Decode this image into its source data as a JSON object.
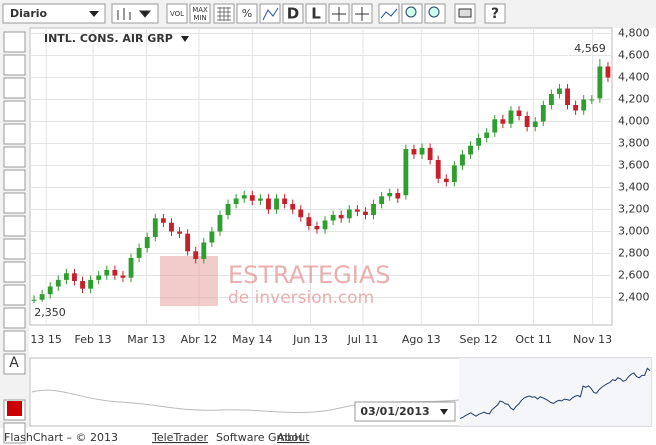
{
  "toolbar": {
    "period": "Diario",
    "vol": "VOL",
    "max": "MAX",
    "min": "MIN",
    "percent": "%",
    "d": "D",
    "l": "L",
    "help": "?"
  },
  "tools": {
    "text": "A"
  },
  "chart_data": {
    "type": "candlestick",
    "title": "INTL. CONS. AIR GRP",
    "open": [
      2370,
      2380,
      2430,
      2500,
      2560,
      2620,
      2550,
      2480,
      2560,
      2600,
      2650,
      2600,
      2580,
      2760,
      2850,
      2950,
      3120,
      3080,
      3000,
      2980,
      2820,
      2750,
      2900,
      3000,
      3150,
      3250,
      3300,
      3330,
      3280,
      3300,
      3200,
      3300,
      3250,
      3200,
      3130,
      3050,
      3020,
      3100,
      3150,
      3120,
      3200,
      3180,
      3150,
      3250,
      3320,
      3350,
      3330,
      3750,
      3700,
      3760,
      3650,
      3480,
      3450,
      3600,
      3700,
      3780,
      3850,
      3900,
      4020,
      3980,
      4100,
      4050,
      3950,
      4000,
      4150,
      4250,
      4300,
      4150,
      4100,
      4200,
      4210,
      4500
    ],
    "high": [
      2420,
      2470,
      2540,
      2600,
      2660,
      2660,
      2590,
      2600,
      2640,
      2690,
      2690,
      2640,
      2800,
      2890,
      2990,
      3160,
      3160,
      3120,
      3040,
      3020,
      2860,
      2940,
      3040,
      3190,
      3290,
      3340,
      3370,
      3370,
      3340,
      3340,
      3340,
      3340,
      3290,
      3240,
      3170,
      3090,
      3140,
      3190,
      3190,
      3240,
      3240,
      3220,
      3290,
      3360,
      3390,
      3390,
      3790,
      3790,
      3800,
      3800,
      3690,
      3520,
      3640,
      3740,
      3820,
      3890,
      3940,
      4060,
      4060,
      4140,
      4140,
      4090,
      4040,
      4190,
      4290,
      4340,
      4340,
      4190,
      4240,
      4240,
      4569,
      4540
    ],
    "low": [
      2350,
      2360,
      2390,
      2460,
      2520,
      2510,
      2440,
      2440,
      2520,
      2560,
      2560,
      2540,
      2540,
      2720,
      2810,
      2910,
      3040,
      2960,
      2940,
      2780,
      2710,
      2710,
      2860,
      2960,
      3110,
      3210,
      3260,
      3240,
      3240,
      3160,
      3160,
      3210,
      3160,
      3090,
      3010,
      2980,
      2980,
      3060,
      3080,
      3080,
      3140,
      3110,
      3110,
      3210,
      3280,
      3260,
      3290,
      3660,
      3660,
      3610,
      3440,
      3410,
      3410,
      3560,
      3660,
      3740,
      3810,
      3860,
      3940,
      3940,
      4010,
      3910,
      3910,
      3960,
      4110,
      4210,
      4110,
      4060,
      4060,
      4160,
      4170,
      4360
    ],
    "close": [
      2380,
      2430,
      2500,
      2560,
      2620,
      2550,
      2480,
      2560,
      2600,
      2650,
      2600,
      2580,
      2760,
      2850,
      2950,
      3120,
      3080,
      3000,
      2980,
      2820,
      2750,
      2900,
      3000,
      3150,
      3250,
      3300,
      3330,
      3280,
      3300,
      3200,
      3300,
      3250,
      3200,
      3130,
      3050,
      3020,
      3100,
      3150,
      3120,
      3200,
      3180,
      3150,
      3250,
      3320,
      3350,
      3300,
      3750,
      3700,
      3760,
      3650,
      3480,
      3450,
      3600,
      3700,
      3780,
      3850,
      3900,
      4020,
      3980,
      4100,
      4050,
      3950,
      4000,
      4150,
      4250,
      4300,
      4150,
      4100,
      4200,
      4200,
      4500,
      4400
    ],
    "up_color": "#2e9e2e",
    "down_color": "#c8202a",
    "ylim": [
      2150,
      4850
    ],
    "yticks": [
      {
        "value": 2400,
        "label": "2,400"
      },
      {
        "value": 2600,
        "label": "2,600"
      },
      {
        "value": 2800,
        "label": "2,800"
      },
      {
        "value": 3000,
        "label": "3,000"
      },
      {
        "value": 3200,
        "label": "3,200"
      },
      {
        "value": 3400,
        "label": "3,400"
      },
      {
        "value": 3600,
        "label": "3,600"
      },
      {
        "value": 3800,
        "label": "3,800"
      },
      {
        "value": 4000,
        "label": "4,000"
      },
      {
        "value": 4200,
        "label": "4,200"
      },
      {
        "value": 4400,
        "label": "4,400"
      },
      {
        "value": 4600,
        "label": "4,600"
      },
      {
        "value": 4800,
        "label": "4,800"
      }
    ],
    "xlim": [
      -0.5,
      71.5
    ],
    "xticks": [
      {
        "value": 1.5,
        "label": "13 15"
      },
      {
        "value": 7.3,
        "label": "Feb 13"
      },
      {
        "value": 13.9,
        "label": "Mar 13"
      },
      {
        "value": 20.4,
        "label": "Abr 12"
      },
      {
        "value": 27,
        "label": "May 14"
      },
      {
        "value": 34.2,
        "label": "Jun 13"
      },
      {
        "value": 40.7,
        "label": "Jul 11"
      },
      {
        "value": 47.9,
        "label": "Ago 13"
      },
      {
        "value": 55,
        "label": "Sep 12"
      },
      {
        "value": 61.8,
        "label": "Oct 11"
      },
      {
        "value": 69.1,
        "label": "Nov 13"
      }
    ],
    "grid": true,
    "annotations": [
      {
        "value": 4569,
        "label": "4,569"
      },
      {
        "value": 2350,
        "label": "2,350"
      }
    ]
  },
  "watermark": {
    "line1": "ESTRATEGIAS",
    "line2": "de inversion.com"
  },
  "navigator": {
    "date": "03/01/2013"
  },
  "footer": {
    "prefix": "FlashChart – © 2013",
    "company": "TeleTrader",
    "suffix": "Software GmbH",
    "link": "About"
  }
}
